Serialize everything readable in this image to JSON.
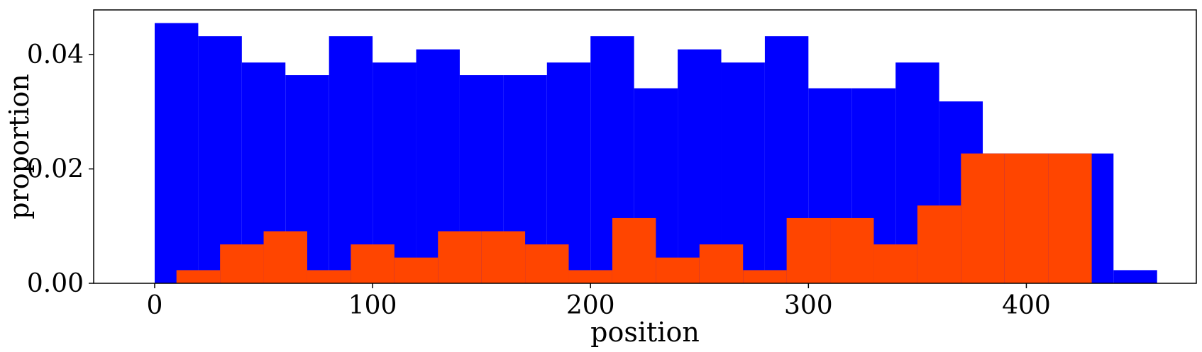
{
  "chart_data": {
    "type": "bar",
    "xlabel": "position",
    "ylabel": "proportion",
    "xlim": [
      -28,
      478
    ],
    "ylim": [
      0,
      0.0478
    ],
    "bin_width": 20,
    "x_ticks": [
      0,
      100,
      200,
      300,
      400
    ],
    "x_tick_labels": [
      "0",
      "100",
      "200",
      "300",
      "400"
    ],
    "y_ticks": [
      0.0,
      0.02,
      0.04
    ],
    "y_tick_labels": [
      "0.00",
      "0.02",
      "0.04"
    ],
    "grid": false,
    "legend": false,
    "series": [
      {
        "color": "#0000ff",
        "bins": [
          {
            "x": 10,
            "value": 0.0455
          },
          {
            "x": 30,
            "value": 0.0432
          },
          {
            "x": 50,
            "value": 0.0386
          },
          {
            "x": 70,
            "value": 0.0364
          },
          {
            "x": 90,
            "value": 0.0432
          },
          {
            "x": 110,
            "value": 0.0386
          },
          {
            "x": 130,
            "value": 0.0409
          },
          {
            "x": 150,
            "value": 0.0364
          },
          {
            "x": 170,
            "value": 0.0364
          },
          {
            "x": 190,
            "value": 0.0386
          },
          {
            "x": 210,
            "value": 0.0432
          },
          {
            "x": 230,
            "value": 0.0341
          },
          {
            "x": 250,
            "value": 0.0409
          },
          {
            "x": 270,
            "value": 0.0386
          },
          {
            "x": 290,
            "value": 0.0432
          },
          {
            "x": 310,
            "value": 0.0341
          },
          {
            "x": 330,
            "value": 0.0341
          },
          {
            "x": 350,
            "value": 0.0386
          },
          {
            "x": 370,
            "value": 0.0318
          },
          {
            "x": 390,
            "value": 0.0227
          },
          {
            "x": 410,
            "value": 0.0227
          },
          {
            "x": 430,
            "value": 0.0227
          },
          {
            "x": 450,
            "value": 0.0023
          }
        ]
      },
      {
        "color": "#ff4500",
        "bins": [
          {
            "x": 20,
            "value": 0.0023
          },
          {
            "x": 40,
            "value": 0.0068
          },
          {
            "x": 60,
            "value": 0.0091
          },
          {
            "x": 80,
            "value": 0.0023
          },
          {
            "x": 100,
            "value": 0.0068
          },
          {
            "x": 120,
            "value": 0.0045
          },
          {
            "x": 140,
            "value": 0.0091
          },
          {
            "x": 160,
            "value": 0.0091
          },
          {
            "x": 180,
            "value": 0.0068
          },
          {
            "x": 200,
            "value": 0.0023
          },
          {
            "x": 220,
            "value": 0.0114
          },
          {
            "x": 240,
            "value": 0.0045
          },
          {
            "x": 260,
            "value": 0.0068
          },
          {
            "x": 280,
            "value": 0.0023
          },
          {
            "x": 300,
            "value": 0.0114
          },
          {
            "x": 320,
            "value": 0.0114
          },
          {
            "x": 340,
            "value": 0.0068
          },
          {
            "x": 360,
            "value": 0.0136
          },
          {
            "x": 380,
            "value": 0.0227
          },
          {
            "x": 400,
            "value": 0.0227
          },
          {
            "x": 420,
            "value": 0.0227
          }
        ]
      }
    ]
  }
}
